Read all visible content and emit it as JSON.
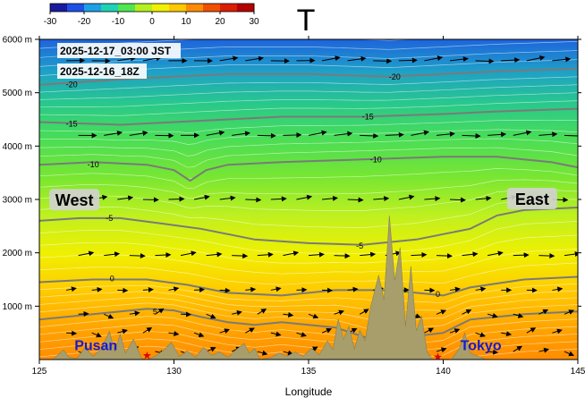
{
  "chart_data": {
    "type": "heatmap",
    "title": "T",
    "xlabel": "Longitude",
    "ylabel": "",
    "xlim": [
      125,
      145
    ],
    "ylim": [
      0,
      6000
    ],
    "xticks": [
      125,
      130,
      135,
      140,
      145
    ],
    "xtick_labels": [
      "125",
      "130",
      "135",
      "140",
      "145"
    ],
    "yticks": [
      1000,
      2000,
      3000,
      4000,
      5000,
      6000
    ],
    "ytick_labels": [
      "1000 m",
      "2000 m",
      "3000 m",
      "4000 m",
      "5000 m",
      "6000 m"
    ],
    "colorbar": {
      "ticks": [
        -30,
        -20,
        -10,
        0,
        10,
        20,
        30
      ],
      "tick_labels": [
        "-30",
        "-20",
        "-10",
        "0",
        "10",
        "20",
        "30"
      ],
      "colors": [
        "#1a1aa0",
        "#1e50e6",
        "#1ea0e6",
        "#1ed2b4",
        "#50e650",
        "#b4f01e",
        "#f0f000",
        "#ffc800",
        "#ff8c00",
        "#f05000",
        "#dc1e00",
        "#b40000"
      ]
    },
    "timestamps": [
      "2025-12-17_03:00 JST",
      "2025-12-16_18Z"
    ],
    "annotations": [
      {
        "text": "West",
        "x": 126.3,
        "y": 2980
      },
      {
        "text": "East",
        "x": 143.3,
        "y": 3000
      },
      {
        "text": "Pusan",
        "x": 127.1,
        "y": 280
      },
      {
        "text": "Tokyo",
        "x": 141.4,
        "y": 280
      }
    ],
    "contour_labels": [
      {
        "text": "-20",
        "x": 126.2,
        "y": 5150
      },
      {
        "text": "-20",
        "x": 138.2,
        "y": 5300
      },
      {
        "text": "-15",
        "x": 126.2,
        "y": 4420
      },
      {
        "text": "-15",
        "x": 137.2,
        "y": 4550
      },
      {
        "text": "-10",
        "x": 127.0,
        "y": 3650
      },
      {
        "text": "-10",
        "x": 137.5,
        "y": 3750
      },
      {
        "text": "-5",
        "x": 127.6,
        "y": 2650
      },
      {
        "text": "-5",
        "x": 136.9,
        "y": 2130
      },
      {
        "text": "0",
        "x": 127.7,
        "y": 1520
      },
      {
        "text": "0",
        "x": 139.8,
        "y": 1220
      },
      {
        "text": "5",
        "x": 129.3,
        "y": 900
      }
    ],
    "contours": [
      {
        "level": -20,
        "points": [
          [
            125,
            5150
          ],
          [
            128,
            5250
          ],
          [
            130,
            5300
          ],
          [
            132,
            5350
          ],
          [
            135,
            5350
          ],
          [
            138,
            5300
          ],
          [
            140,
            5350
          ],
          [
            142,
            5400
          ],
          [
            145,
            5450
          ]
        ]
      },
      {
        "level": -15,
        "points": [
          [
            125,
            4450
          ],
          [
            128,
            4400
          ],
          [
            130,
            4450
          ],
          [
            132,
            4500
          ],
          [
            134,
            4550
          ],
          [
            137,
            4550
          ],
          [
            140,
            4600
          ],
          [
            142,
            4650
          ],
          [
            145,
            4700
          ]
        ]
      },
      {
        "level": -10,
        "points": [
          [
            125,
            3650
          ],
          [
            127,
            3700
          ],
          [
            129,
            3650
          ],
          [
            130,
            3550
          ],
          [
            130.6,
            3350
          ],
          [
            131.2,
            3550
          ],
          [
            132,
            3650
          ],
          [
            134,
            3700
          ],
          [
            137,
            3750
          ],
          [
            140,
            3800
          ],
          [
            142,
            3800
          ],
          [
            144,
            3700
          ],
          [
            145,
            3600
          ]
        ]
      },
      {
        "level": -5,
        "points": [
          [
            125,
            2600
          ],
          [
            126.5,
            2650
          ],
          [
            128,
            2650
          ],
          [
            129.5,
            2550
          ],
          [
            131,
            2450
          ],
          [
            133,
            2250
          ],
          [
            135,
            2180
          ],
          [
            137,
            2150
          ],
          [
            139,
            2250
          ],
          [
            141,
            2450
          ],
          [
            142,
            2700
          ],
          [
            143,
            2800
          ],
          [
            145,
            2850
          ]
        ]
      },
      {
        "level": 0,
        "points": [
          [
            125,
            1450
          ],
          [
            127,
            1500
          ],
          [
            129,
            1500
          ],
          [
            130.5,
            1400
          ],
          [
            132,
            1250
          ],
          [
            134,
            1200
          ],
          [
            136,
            1300
          ],
          [
            138,
            1300
          ],
          [
            139,
            1250
          ],
          [
            140,
            1200
          ],
          [
            141,
            1350
          ],
          [
            143,
            1500
          ],
          [
            145,
            1550
          ]
        ]
      },
      {
        "level": 5,
        "points": [
          [
            125,
            750
          ],
          [
            127,
            850
          ],
          [
            129,
            950
          ],
          [
            130,
            920
          ],
          [
            131,
            800
          ],
          [
            132,
            700
          ],
          [
            133,
            650
          ],
          [
            134,
            700
          ],
          [
            136,
            600
          ],
          [
            137.5,
            350
          ],
          [
            140,
            500
          ],
          [
            141,
            750
          ],
          [
            143,
            850
          ],
          [
            145,
            900
          ]
        ]
      }
    ],
    "wind_rows": [
      5600,
      4200,
      3000,
      1950,
      1300,
      850,
      500,
      150
    ],
    "terrain": [
      [
        125,
        0
      ],
      [
        125.5,
        0
      ],
      [
        125.9,
        180
      ],
      [
        126.1,
        40
      ],
      [
        126.4,
        20
      ],
      [
        126.7,
        230
      ],
      [
        127.0,
        60
      ],
      [
        127.3,
        200
      ],
      [
        127.6,
        530
      ],
      [
        127.8,
        150
      ],
      [
        128.0,
        480
      ],
      [
        128.2,
        120
      ],
      [
        128.5,
        380
      ],
      [
        128.8,
        20
      ],
      [
        129.0,
        0
      ],
      [
        129.3,
        60
      ],
      [
        129.6,
        170
      ],
      [
        129.9,
        320
      ],
      [
        130.2,
        60
      ],
      [
        130.5,
        160
      ],
      [
        130.8,
        40
      ],
      [
        131.1,
        230
      ],
      [
        131.4,
        80
      ],
      [
        131.7,
        140
      ],
      [
        132.0,
        40
      ],
      [
        132.3,
        180
      ],
      [
        132.6,
        300
      ],
      [
        132.8,
        120
      ],
      [
        133.0,
        210
      ],
      [
        133.2,
        0
      ],
      [
        133.6,
        40
      ],
      [
        133.9,
        120
      ],
      [
        134.2,
        60
      ],
      [
        134.5,
        140
      ],
      [
        134.8,
        60
      ],
      [
        135.1,
        210
      ],
      [
        135.4,
        90
      ],
      [
        135.7,
        350
      ],
      [
        135.9,
        180
      ],
      [
        136.1,
        760
      ],
      [
        136.3,
        380
      ],
      [
        136.5,
        620
      ],
      [
        136.7,
        200
      ],
      [
        136.9,
        550
      ],
      [
        137.1,
        350
      ],
      [
        137.3,
        980
      ],
      [
        137.6,
        1580
      ],
      [
        137.8,
        1120
      ],
      [
        138.0,
        2700
      ],
      [
        138.2,
        1480
      ],
      [
        138.4,
        2100
      ],
      [
        138.6,
        620
      ],
      [
        138.8,
        1750
      ],
      [
        139.0,
        540
      ],
      [
        139.2,
        820
      ],
      [
        139.4,
        150
      ],
      [
        139.6,
        0
      ],
      [
        140.0,
        0
      ],
      [
        140.3,
        0
      ],
      [
        140.6,
        210
      ],
      [
        140.8,
        500
      ],
      [
        141.0,
        120
      ],
      [
        141.3,
        60
      ],
      [
        141.6,
        0
      ],
      [
        145,
        0
      ]
    ],
    "markers": [
      {
        "x": 129.0,
        "y": 60
      },
      {
        "x": 139.8,
        "y": 30
      }
    ]
  }
}
